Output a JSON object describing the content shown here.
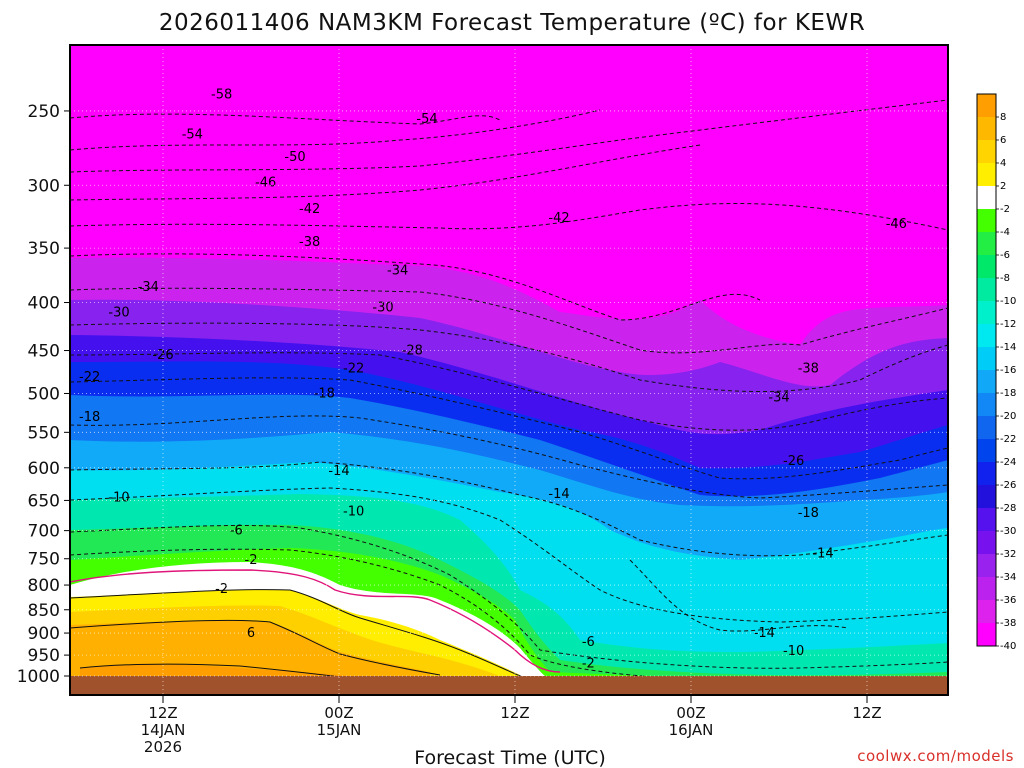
{
  "chart_data": {
    "type": "heatmap",
    "title": "2026011406 NAM3KM Forecast Temperature (ºC) for KEWR",
    "xlabel": "Forecast Time (UTC)",
    "ylabel": "",
    "credit": "coolwx.com/models",
    "y_ticks": [
      "250",
      "300",
      "350",
      "400",
      "450",
      "500",
      "550",
      "600",
      "650",
      "700",
      "750",
      "800",
      "850",
      "900",
      "950",
      "1000"
    ],
    "x_ticks": [
      {
        "l1": "12Z",
        "l2": "14JAN",
        "l3": "2026",
        "h": 12
      },
      {
        "l1": "00Z",
        "l2": "15JAN",
        "l3": "",
        "h": 24
      },
      {
        "l1": "12Z",
        "l2": "",
        "l3": "",
        "h": 36
      },
      {
        "l1": "00Z",
        "l2": "16JAN",
        "l3": "",
        "h": 48
      },
      {
        "l1": "12Z",
        "l2": "",
        "l3": "",
        "h": 60
      }
    ],
    "x_range_hours": [
      6,
      66
    ],
    "y_range_hpa": [
      200,
      1000
    ],
    "y_scale": "log",
    "grid": true,
    "legend_placement": "right",
    "legend_labels": [
      "8",
      "6",
      "4",
      "2",
      "-2",
      "-4",
      "-6",
      "-8",
      "-10",
      "-12",
      "-14",
      "-16",
      "-18",
      "-20",
      "-22",
      "-24",
      "-26",
      "-28",
      "-30",
      "-32",
      "-34",
      "-36",
      "-38",
      "-40"
    ],
    "legend_colors": [
      "#ff9e00",
      "#ffb800",
      "#ffd400",
      "#ffee00",
      "#ffffff",
      "#44ff00",
      "#22ee44",
      "#00e86a",
      "#00eba0",
      "#00f0cc",
      "#00e8f0",
      "#00ccf8",
      "#11a8f8",
      "#1188f5",
      "#1166f0",
      "#0044ee",
      "#1122ee",
      "#2211dd",
      "#5511ee",
      "#7711ee",
      "#9922ee",
      "#bb22ee",
      "#dd22ee",
      "#ff00ff"
    ],
    "isotherm_labels": [
      {
        "t": "-58",
        "h": 16,
        "p": 240
      },
      {
        "t": "-54",
        "h": 14,
        "p": 265
      },
      {
        "t": "-54",
        "h": 30,
        "p": 255
      },
      {
        "t": "-50",
        "h": 21,
        "p": 280
      },
      {
        "t": "-46",
        "h": 19,
        "p": 298
      },
      {
        "t": "-42",
        "h": 22,
        "p": 318
      },
      {
        "t": "-42",
        "h": 39,
        "p": 325
      },
      {
        "t": "-46",
        "h": 62,
        "p": 330
      },
      {
        "t": "-38",
        "h": 22,
        "p": 345
      },
      {
        "t": "-34",
        "h": 11,
        "p": 385
      },
      {
        "t": "-34",
        "h": 28,
        "p": 370
      },
      {
        "t": "-30",
        "h": 9,
        "p": 410
      },
      {
        "t": "-30",
        "h": 27,
        "p": 405
      },
      {
        "t": "-26",
        "h": 12,
        "p": 455
      },
      {
        "t": "-28",
        "h": 29,
        "p": 450
      },
      {
        "t": "-22",
        "h": 7,
        "p": 480
      },
      {
        "t": "-22",
        "h": 25,
        "p": 470
      },
      {
        "t": "-18",
        "h": 7,
        "p": 530
      },
      {
        "t": "-18",
        "h": 23,
        "p": 500
      },
      {
        "t": "-38",
        "h": 56,
        "p": 470
      },
      {
        "t": "-34",
        "h": 54,
        "p": 505
      },
      {
        "t": "-26",
        "h": 55,
        "p": 590
      },
      {
        "t": "-14",
        "h": 24,
        "p": 605
      },
      {
        "t": "-14",
        "h": 39,
        "p": 640
      },
      {
        "t": "-10",
        "h": 9,
        "p": 645
      },
      {
        "t": "-10",
        "h": 25,
        "p": 668
      },
      {
        "t": "-18",
        "h": 56,
        "p": 670
      },
      {
        "t": "-6",
        "h": 17,
        "p": 700
      },
      {
        "t": "-14",
        "h": 57,
        "p": 740
      },
      {
        "t": "-2",
        "h": 18,
        "p": 752
      },
      {
        "t": "-2",
        "h": 16,
        "p": 808
      },
      {
        "t": "6",
        "h": 18,
        "p": 900
      },
      {
        "t": "-14",
        "h": 53,
        "p": 900
      },
      {
        "t": "-6",
        "h": 41,
        "p": 920
      },
      {
        "t": "-10",
        "h": 55,
        "p": 940
      },
      {
        "t": "-2",
        "h": 41,
        "p": 970
      }
    ]
  }
}
